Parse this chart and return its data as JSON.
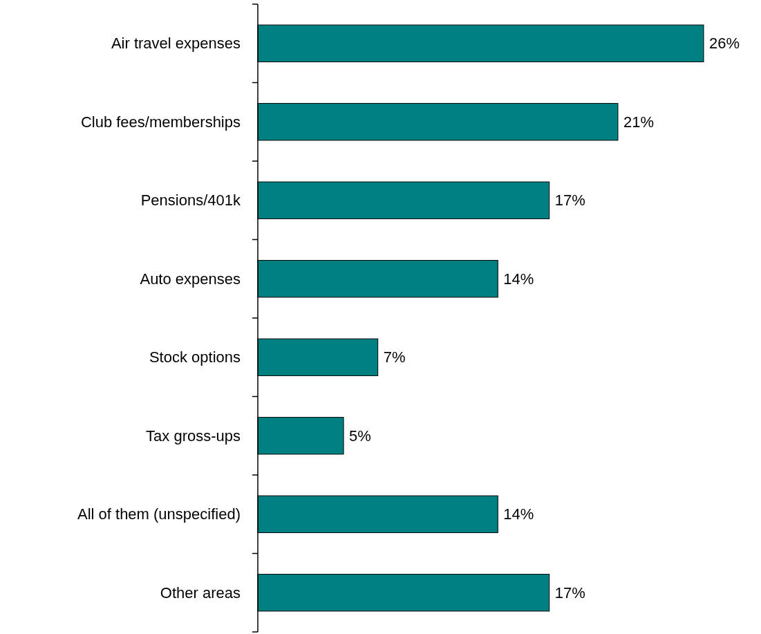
{
  "chart_data": {
    "type": "bar",
    "orientation": "horizontal",
    "categories": [
      "Air travel expenses",
      "Club fees/memberships",
      "Pensions/401k",
      "Auto expenses",
      "Stock options",
      "Tax gross-ups",
      "All of them (unspecified)",
      "Other areas"
    ],
    "values": [
      26,
      21,
      17,
      14,
      7,
      5,
      14,
      17
    ],
    "value_labels": [
      "26%",
      "21%",
      "17%",
      "14%",
      "7%",
      "5%",
      "14%",
      "17%"
    ],
    "color": "#008080"
  }
}
